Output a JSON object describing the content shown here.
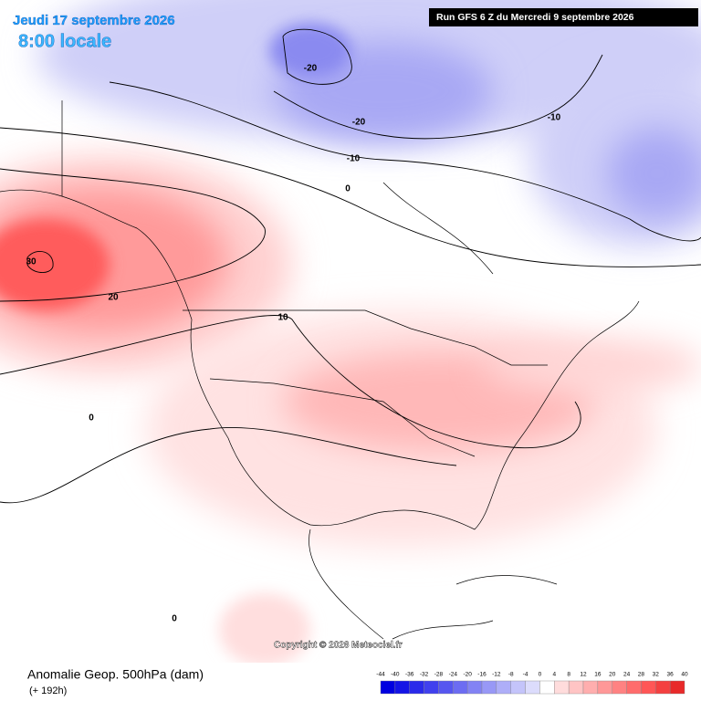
{
  "header": {
    "valid_date": "Jeudi 17 septembre 2026",
    "local_time": "8:00 locale",
    "run": "Run GFS 6 Z du Mercredi 9 septembre 2026"
  },
  "map": {
    "contour_labels": [
      -20,
      -20,
      -10,
      -10,
      0,
      30,
      20,
      10,
      0,
      0
    ],
    "copyright": "Copyright © 2026 Meteociel.fr"
  },
  "footer": {
    "title": "Anomalie Geop. 500hPa (dam)",
    "lead": "(+ 192h)"
  },
  "legend": {
    "ticks": [
      -44,
      -40,
      -36,
      -32,
      -28,
      -24,
      -20,
      -16,
      -12,
      -8,
      -4,
      0,
      4,
      8,
      12,
      16,
      20,
      24,
      28,
      32,
      36,
      40
    ],
    "colors": [
      "#0000e0",
      "#1414e6",
      "#2a2aea",
      "#4040ee",
      "#5656f0",
      "#6c6cf2",
      "#8282f4",
      "#9898f6",
      "#aeaef8",
      "#c4c4fa",
      "#dcdcfc",
      "#ffffff",
      "#ffdcdc",
      "#ffc4c4",
      "#ffaeae",
      "#ff9898",
      "#ff8282",
      "#ff6c6c",
      "#ff5656",
      "#f44040",
      "#e82a2a"
    ]
  }
}
